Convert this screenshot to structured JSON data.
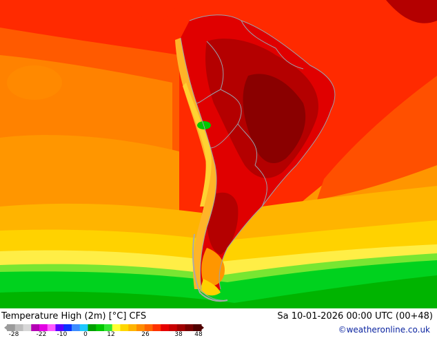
{
  "title": "Temperature High (2m) [°C] CFS",
  "datetime": "Sa 10-01-2026 00:00 UTC (00+48)",
  "credit": "©weatheronline.co.uk",
  "legend": {
    "ticks": [
      "-28",
      "-22",
      "-10",
      "0",
      "12",
      "26",
      "38",
      "48"
    ],
    "colors": [
      "#9b9b9b",
      "#bdbdbd",
      "#d7d7d7",
      "#b400b4",
      "#e300e3",
      "#ff5aff",
      "#5a00ff",
      "#0a32ff",
      "#3c8cff",
      "#1ec8ff",
      "#00a000",
      "#00c800",
      "#32e632",
      "#ffff32",
      "#ffd700",
      "#ffb400",
      "#ff8c00",
      "#ff6400",
      "#ff3200",
      "#e60000",
      "#c80000",
      "#a00000",
      "#780000",
      "#500000"
    ]
  },
  "map_colors": {
    "water_north": "#ff2a00",
    "warm_band": "#ff6a00",
    "orange": "#ff9600",
    "light_orange": "#ffb400",
    "yellow": "#ffd200",
    "pale_yellow": "#ffe632",
    "green": "#00d21e",
    "dark_green": "#00b400",
    "dark_red": "#b40000",
    "deep_red": "#8a0000",
    "land_red": "#e00000",
    "andes": "#ffb428",
    "border": "#9aa3ad"
  }
}
